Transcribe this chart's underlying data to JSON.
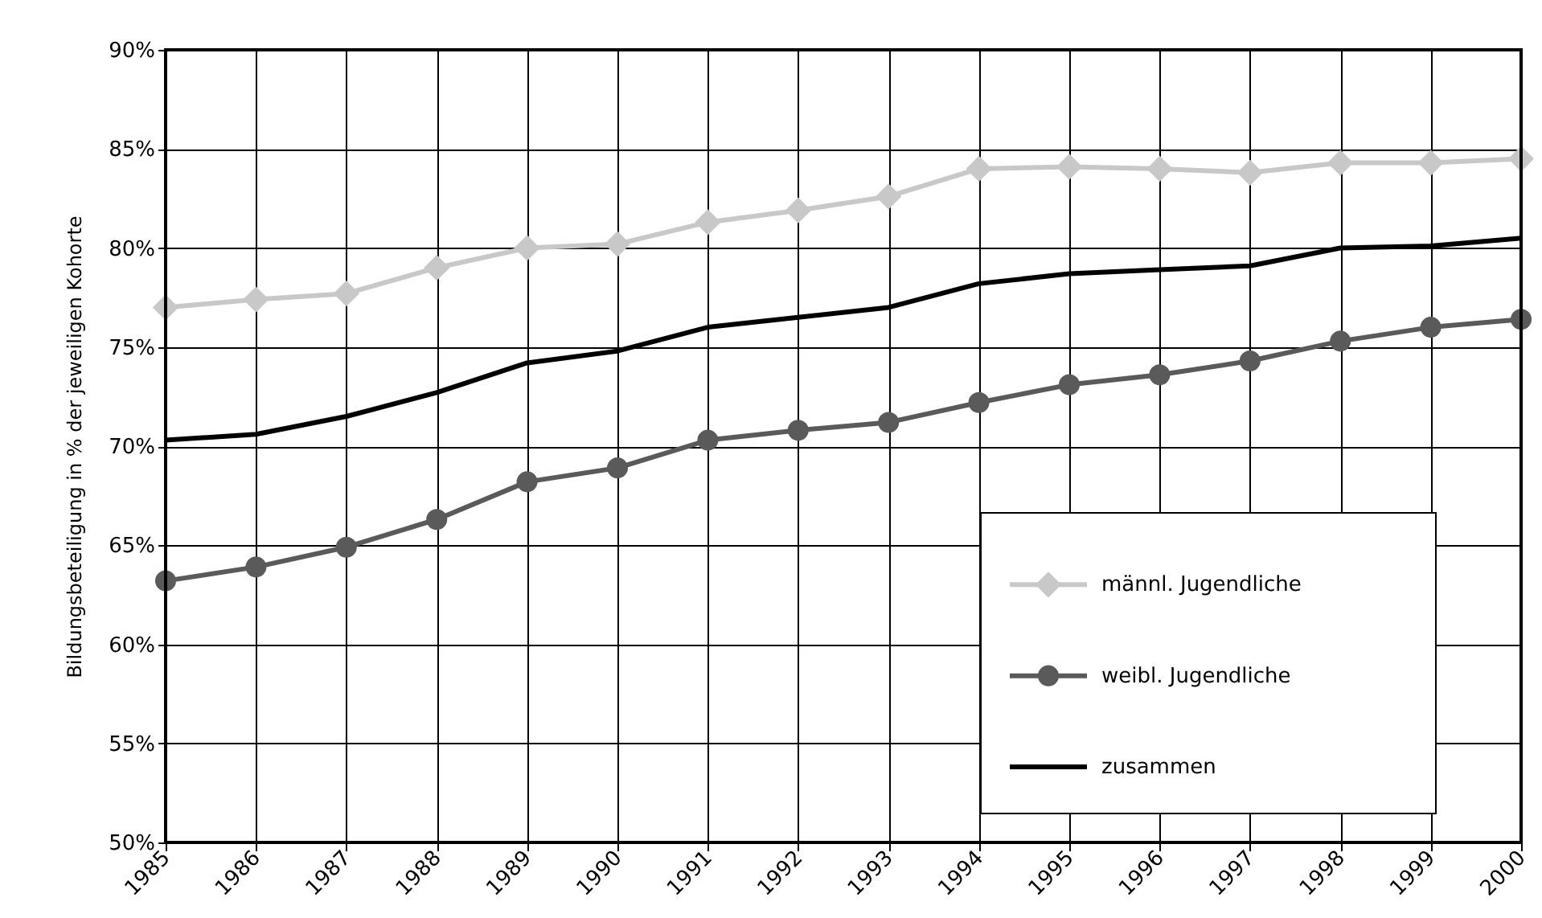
{
  "chart_data": {
    "type": "line",
    "ylabel": "Bildungsbeteiligung in % der jeweiligen Kohorte",
    "categories": [
      "1985",
      "1986",
      "1987",
      "1988",
      "1989",
      "1990",
      "1991",
      "1992",
      "1993",
      "1994",
      "1995",
      "1996",
      "1997",
      "1998",
      "1999",
      "2000"
    ],
    "series": [
      {
        "name": "männl. Jugendliche",
        "color": "#c8c8c8",
        "marker": "diamond",
        "values": [
          77.0,
          77.4,
          77.7,
          79.0,
          80.0,
          80.2,
          81.3,
          81.9,
          82.6,
          84.0,
          84.1,
          84.0,
          83.8,
          84.3,
          84.3,
          84.5
        ]
      },
      {
        "name": "weibl. Jugendliche",
        "color": "#5a5a5a",
        "marker": "circle",
        "values": [
          63.2,
          63.9,
          64.9,
          66.3,
          68.2,
          68.9,
          70.3,
          70.8,
          71.2,
          72.2,
          73.1,
          73.6,
          74.3,
          75.3,
          76.0,
          76.4
        ]
      },
      {
        "name": "zusammen",
        "color": "#000000",
        "marker": "none",
        "values": [
          70.3,
          70.6,
          71.5,
          72.7,
          74.2,
          74.8,
          76.0,
          76.5,
          77.0,
          78.2,
          78.7,
          78.9,
          79.1,
          80.0,
          80.1,
          80.5
        ]
      }
    ],
    "ylim": [
      50,
      90
    ],
    "yticks": [
      {
        "value": 50,
        "label": "50%"
      },
      {
        "value": 55,
        "label": "55%"
      },
      {
        "value": 60,
        "label": "60%"
      },
      {
        "value": 65,
        "label": "65%"
      },
      {
        "value": 70,
        "label": "70%"
      },
      {
        "value": 75,
        "label": "75%"
      },
      {
        "value": 80,
        "label": "80%"
      },
      {
        "value": 85,
        "label": "85%"
      },
      {
        "value": 90,
        "label": "90%"
      }
    ],
    "grid": true,
    "legend": "bottom right"
  }
}
